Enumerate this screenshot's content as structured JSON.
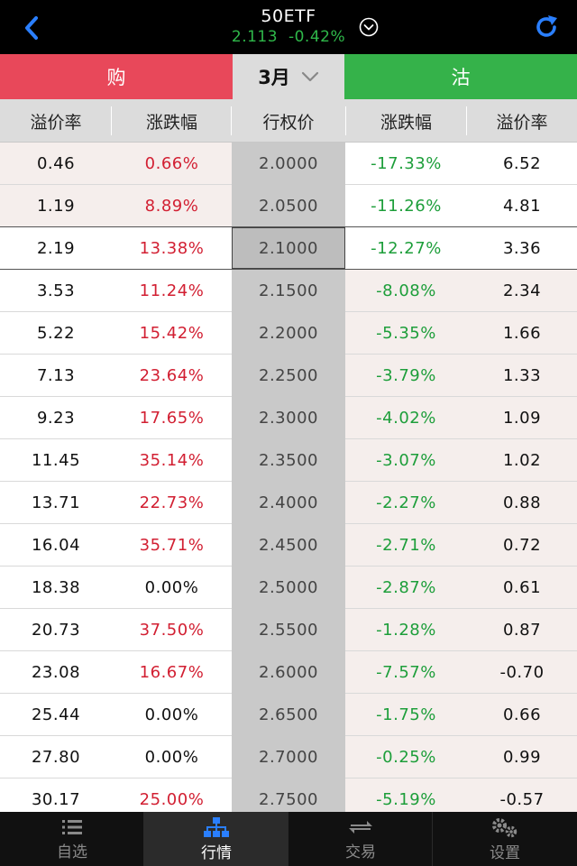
{
  "header": {
    "title": "50ETF",
    "price": "2.113",
    "change": "-0.42%"
  },
  "tabs": {
    "call_label": "购",
    "month_label": "3月",
    "put_label": "沽"
  },
  "columns": [
    "溢价率",
    "涨跌幅",
    "行权价",
    "涨跌幅",
    "溢价率"
  ],
  "selected_row_index": 2,
  "rows": [
    {
      "call_premium": "0.46",
      "call_change": "0.66%",
      "strike": "2.0000",
      "put_change": "-17.33%",
      "put_premium": "6.52"
    },
    {
      "call_premium": "1.19",
      "call_change": "8.89%",
      "strike": "2.0500",
      "put_change": "-11.26%",
      "put_premium": "4.81"
    },
    {
      "call_premium": "2.19",
      "call_change": "13.38%",
      "strike": "2.1000",
      "put_change": "-12.27%",
      "put_premium": "3.36"
    },
    {
      "call_premium": "3.53",
      "call_change": "11.24%",
      "strike": "2.1500",
      "put_change": "-8.08%",
      "put_premium": "2.34"
    },
    {
      "call_premium": "5.22",
      "call_change": "15.42%",
      "strike": "2.2000",
      "put_change": "-5.35%",
      "put_premium": "1.66"
    },
    {
      "call_premium": "7.13",
      "call_change": "23.64%",
      "strike": "2.2500",
      "put_change": "-3.79%",
      "put_premium": "1.33"
    },
    {
      "call_premium": "9.23",
      "call_change": "17.65%",
      "strike": "2.3000",
      "put_change": "-4.02%",
      "put_premium": "1.09"
    },
    {
      "call_premium": "11.45",
      "call_change": "35.14%",
      "strike": "2.3500",
      "put_change": "-3.07%",
      "put_premium": "1.02"
    },
    {
      "call_premium": "13.71",
      "call_change": "22.73%",
      "strike": "2.4000",
      "put_change": "-2.27%",
      "put_premium": "0.88"
    },
    {
      "call_premium": "16.04",
      "call_change": "35.71%",
      "strike": "2.4500",
      "put_change": "-2.71%",
      "put_premium": "0.72"
    },
    {
      "call_premium": "18.38",
      "call_change": "0.00%",
      "strike": "2.5000",
      "put_change": "-2.87%",
      "put_premium": "0.61"
    },
    {
      "call_premium": "20.73",
      "call_change": "37.50%",
      "strike": "2.5500",
      "put_change": "-1.28%",
      "put_premium": "0.87"
    },
    {
      "call_premium": "23.08",
      "call_change": "16.67%",
      "strike": "2.6000",
      "put_change": "-7.57%",
      "put_premium": "-0.70"
    },
    {
      "call_premium": "25.44",
      "call_change": "0.00%",
      "strike": "2.6500",
      "put_change": "-1.75%",
      "put_premium": "0.66"
    },
    {
      "call_premium": "27.80",
      "call_change": "0.00%",
      "strike": "2.7000",
      "put_change": "-0.25%",
      "put_premium": "0.99"
    },
    {
      "call_premium": "30.17",
      "call_change": "25.00%",
      "strike": "2.7500",
      "put_change": "-5.19%",
      "put_premium": "-0.57"
    }
  ],
  "nav": [
    {
      "label": "自选",
      "icon": "list-icon"
    },
    {
      "label": "行情",
      "icon": "org-chart-icon"
    },
    {
      "label": "交易",
      "icon": "exchange-icon"
    },
    {
      "label": "设置",
      "icon": "gears-icon"
    }
  ],
  "active_nav_index": 1,
  "colors": {
    "call_red": "#e8485a",
    "put_green": "#35b24a",
    "price_green": "#2fb84a",
    "up_red": "#d21f32",
    "down_green": "#1d9e3a",
    "accent_blue": "#2a7fff",
    "itm_call_bg": "#f5eeec",
    "itm_put_bg": "#f5eeec"
  }
}
